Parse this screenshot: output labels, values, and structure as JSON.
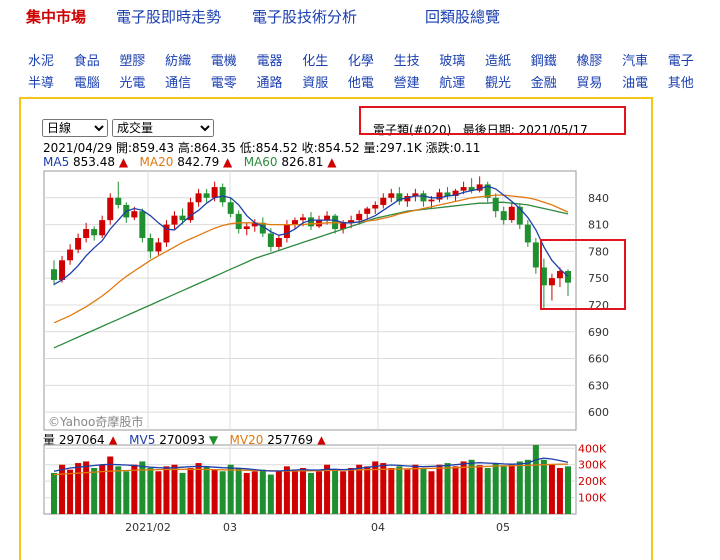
{
  "topnav": {
    "items": [
      "集中市場",
      "電子股即時走勢",
      "電子股技術分析",
      "回類股總覽"
    ]
  },
  "categories": {
    "row1": [
      "水泥",
      "食品",
      "塑膠",
      "紡織",
      "電機",
      "電器",
      "化生",
      "化學",
      "生技",
      "玻璃",
      "造紙",
      "鋼鐵",
      "橡膠",
      "汽車",
      "電子"
    ],
    "row2": [
      "半導",
      "電腦",
      "光電",
      "通信",
      "電零",
      "通路",
      "資服",
      "他電",
      "營建",
      "航運",
      "觀光",
      "金融",
      "貿易",
      "油電",
      "其他"
    ]
  },
  "controls": {
    "period": "日線",
    "indicator": "成交量"
  },
  "stock": {
    "name": "電子類(#020)",
    "last_date_label": "最後日期:",
    "last_date": "2021/05/17"
  },
  "ohlc": {
    "date": "2021/04/29",
    "open": "開:859.43",
    "high": "高:864.35",
    "low": "低:854.52",
    "close": "收:854.52",
    "volume": "量:297.1K",
    "change": "漲跌:0.11"
  },
  "ma": {
    "ma5_label": "MA5",
    "ma5": "853.48",
    "ma20_label": "MA20",
    "ma20": "842.79",
    "ma60_label": "MA60",
    "ma60": "826.81",
    "arrow": "▲"
  },
  "vol": {
    "label": "量",
    "value": "297064",
    "mv5_label": "MV5",
    "mv5": "270093",
    "mv20_label": "MV20",
    "mv20": "257769",
    "up": "▲",
    "down": "▼"
  },
  "watermark": "©Yahoo奇摩股市",
  "colors": {
    "up": "#d00000",
    "down": "#1f8f2f",
    "ma5": "#1d3fa8",
    "ma20": "#e07a10",
    "ma60": "#2e8a3e",
    "grid": "#dcdcdc",
    "highlight": "#e0141e"
  },
  "chart_data": [
    {
      "type": "candlestick",
      "title": "",
      "y_ticks": [
        600,
        630,
        660,
        690,
        720,
        750,
        780,
        810,
        840
      ],
      "ylim": [
        580,
        870
      ],
      "x_ticks": [
        "2021/02",
        "03",
        "04",
        "05"
      ],
      "ohlc": [
        [
          760,
          770,
          742,
          748
        ],
        [
          748,
          775,
          745,
          770
        ],
        [
          770,
          788,
          765,
          782
        ],
        [
          782,
          800,
          778,
          795
        ],
        [
          795,
          812,
          790,
          805
        ],
        [
          805,
          808,
          792,
          798
        ],
        [
          798,
          820,
          795,
          815
        ],
        [
          815,
          845,
          810,
          840
        ],
        [
          840,
          858,
          828,
          832
        ],
        [
          832,
          835,
          812,
          818
        ],
        [
          818,
          830,
          815,
          825
        ],
        [
          825,
          828,
          790,
          795
        ],
        [
          795,
          800,
          772,
          780
        ],
        [
          780,
          795,
          776,
          790
        ],
        [
          790,
          815,
          785,
          810
        ],
        [
          810,
          825,
          805,
          820
        ],
        [
          820,
          828,
          810,
          815
        ],
        [
          815,
          840,
          812,
          835
        ],
        [
          835,
          850,
          830,
          845
        ],
        [
          845,
          850,
          835,
          840
        ],
        [
          840,
          858,
          836,
          852
        ],
        [
          852,
          856,
          830,
          835
        ],
        [
          835,
          840,
          818,
          822
        ],
        [
          822,
          826,
          800,
          805
        ],
        [
          805,
          812,
          798,
          808
        ],
        [
          808,
          816,
          802,
          812
        ],
        [
          812,
          818,
          796,
          800
        ],
        [
          800,
          806,
          780,
          785
        ],
        [
          785,
          798,
          782,
          795
        ],
        [
          795,
          815,
          790,
          810
        ],
        [
          810,
          818,
          805,
          815
        ],
        [
          815,
          822,
          808,
          818
        ],
        [
          818,
          824,
          804,
          808
        ],
        [
          808,
          820,
          806,
          815
        ],
        [
          815,
          825,
          810,
          820
        ],
        [
          820,
          822,
          800,
          805
        ],
        [
          805,
          815,
          800,
          812
        ],
        [
          812,
          820,
          806,
          815
        ],
        [
          815,
          826,
          810,
          822
        ],
        [
          822,
          830,
          815,
          828
        ],
        [
          828,
          836,
          822,
          832
        ],
        [
          832,
          845,
          828,
          840
        ],
        [
          840,
          850,
          835,
          845
        ],
        [
          845,
          852,
          832,
          836
        ],
        [
          836,
          845,
          830,
          842
        ],
        [
          842,
          850,
          836,
          845
        ],
        [
          845,
          848,
          830,
          836
        ],
        [
          836,
          842,
          828,
          838
        ],
        [
          838,
          850,
          835,
          846
        ],
        [
          846,
          852,
          838,
          842
        ],
        [
          842,
          850,
          836,
          848
        ],
        [
          848,
          858,
          844,
          852
        ],
        [
          852,
          862,
          845,
          848
        ],
        [
          848,
          864,
          846,
          855
        ],
        [
          855,
          858,
          835,
          840
        ],
        [
          840,
          845,
          818,
          825
        ],
        [
          825,
          830,
          810,
          815
        ],
        [
          815,
          835,
          812,
          830
        ],
        [
          830,
          834,
          805,
          810
        ],
        [
          810,
          815,
          785,
          790
        ],
        [
          790,
          795,
          755,
          762
        ],
        [
          762,
          772,
          715,
          742
        ],
        [
          742,
          755,
          725,
          750
        ],
        [
          750,
          762,
          740,
          758
        ],
        [
          758,
          760,
          730,
          745
        ]
      ],
      "ma5": [
        743,
        748,
        755,
        764,
        775,
        784,
        792,
        805,
        815,
        825,
        828,
        826,
        820,
        812,
        805,
        804,
        812,
        820,
        826,
        834,
        840,
        842,
        840,
        832,
        820,
        812,
        808,
        802,
        798,
        800,
        805,
        812,
        815,
        815,
        815,
        815,
        812,
        812,
        813,
        816,
        820,
        826,
        832,
        838,
        840,
        842,
        842,
        840,
        840,
        842,
        843,
        846,
        848,
        850,
        853,
        850,
        843,
        836,
        828,
        818,
        804,
        785,
        770,
        760,
        752
      ],
      "ma20": [
        700,
        704,
        708,
        713,
        718,
        724,
        730,
        737,
        745,
        752,
        758,
        764,
        770,
        775,
        780,
        785,
        790,
        794,
        798,
        802,
        806,
        809,
        811,
        812,
        812,
        812,
        811,
        810,
        810,
        810,
        810,
        810,
        811,
        811,
        812,
        812,
        812,
        812,
        813,
        814,
        815,
        817,
        819,
        822,
        824,
        826,
        828,
        830,
        832,
        834,
        836,
        838,
        840,
        841,
        842,
        843,
        843,
        842,
        841,
        840,
        838,
        835,
        832,
        828,
        824
      ],
      "ma60": [
        672,
        676,
        680,
        684,
        688,
        692,
        696,
        700,
        704,
        708,
        712,
        716,
        720,
        724,
        728,
        732,
        736,
        740,
        744,
        748,
        752,
        756,
        760,
        764,
        768,
        772,
        775,
        778,
        781,
        784,
        787,
        790,
        793,
        796,
        799,
        802,
        805,
        808,
        811,
        814,
        817,
        819,
        821,
        823,
        825,
        826,
        827,
        828,
        829,
        830,
        831,
        832,
        833,
        834,
        834,
        835,
        835,
        834,
        833,
        832,
        830,
        828,
        826,
        824,
        822
      ]
    },
    {
      "type": "bar",
      "title": "成交量",
      "y_ticks": [
        "100K",
        "200K",
        "300K",
        "400K"
      ],
      "ylim": [
        0,
        420
      ],
      "values": [
        250,
        300,
        270,
        310,
        320,
        280,
        300,
        350,
        290,
        260,
        300,
        320,
        280,
        260,
        290,
        300,
        250,
        280,
        310,
        290,
        270,
        260,
        300,
        280,
        250,
        260,
        270,
        240,
        260,
        290,
        270,
        280,
        250,
        260,
        300,
        270,
        260,
        280,
        300,
        290,
        320,
        310,
        280,
        290,
        270,
        300,
        280,
        260,
        300,
        310,
        290,
        320,
        330,
        297,
        280,
        310,
        290,
        300,
        320,
        330,
        420,
        330,
        300,
        280,
        290
      ],
      "mv5": [
        260,
        270,
        280,
        285,
        290,
        295,
        300,
        302,
        300,
        298,
        295,
        290,
        285,
        282,
        280,
        282,
        285,
        288,
        290,
        288,
        285,
        282,
        280,
        278,
        275,
        270,
        265,
        262,
        262,
        265,
        268,
        270,
        268,
        268,
        272,
        272,
        270,
        272,
        278,
        284,
        290,
        295,
        298,
        296,
        292,
        290,
        288,
        290,
        292,
        296,
        300,
        305,
        310,
        312,
        310,
        308,
        305,
        303,
        305,
        310,
        330,
        340,
        335,
        325,
        315
      ],
      "mv20": [
        240,
        243,
        246,
        249,
        252,
        255,
        258,
        261,
        263,
        265,
        267,
        268,
        269,
        270,
        271,
        272,
        272,
        272,
        272,
        271,
        270,
        269,
        268,
        267,
        266,
        265,
        264,
        263,
        262,
        262,
        262,
        263,
        263,
        264,
        265,
        266,
        267,
        268,
        269,
        270,
        271,
        272,
        273,
        274,
        275,
        276,
        277,
        278,
        279,
        280,
        282,
        284,
        286,
        288,
        290,
        292,
        293,
        294,
        295,
        296,
        298,
        300,
        302,
        303,
        304
      ]
    }
  ]
}
